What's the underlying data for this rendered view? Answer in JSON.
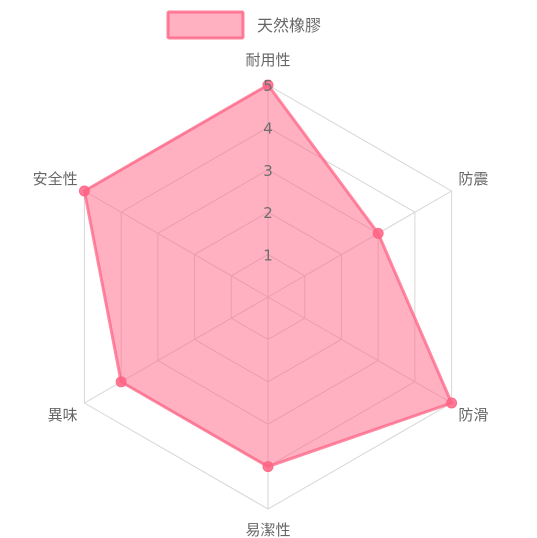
{
  "chart_data": {
    "type": "radar",
    "categories": [
      "耐用性",
      "防震",
      "防滑",
      "易潔性",
      "異味",
      "安全性"
    ],
    "series": [
      {
        "name": "天然橡膠",
        "values": [
          5,
          3,
          5,
          4,
          4,
          5
        ]
      }
    ],
    "r_range": [
      0,
      5
    ],
    "ticks": [
      "1",
      "2",
      "3",
      "4",
      "5"
    ],
    "legend_position": "top",
    "grid": true,
    "colors": {
      "fill": "#ff6384",
      "stroke": "#ff6384",
      "grid": "#d6d6d6",
      "label": "#666666"
    }
  }
}
